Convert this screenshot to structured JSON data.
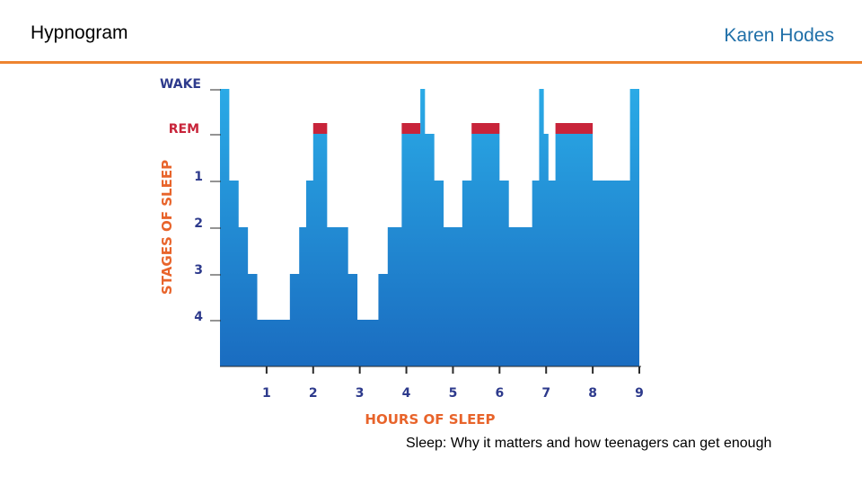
{
  "slide": {
    "title": "Hypnogram",
    "author": "Karen Hodes",
    "caption": "Sleep: Why it matters and how teenagers can get enough"
  },
  "colors": {
    "accent_line": "#ee8430",
    "axis_label": "#e8642b",
    "stage_label_wake_rem": "#2d3a8c",
    "rem_bar": "#c8243a",
    "fill_top": "#2aaae6",
    "fill_bottom": "#1a6cc0",
    "author": "#1f6fa8"
  },
  "chart_data": {
    "type": "area",
    "title": "",
    "xlabel": "HOURS OF SLEEP",
    "ylabel": "STAGES OF SLEEP",
    "x_ticks": [
      "1",
      "2",
      "3",
      "4",
      "5",
      "6",
      "7",
      "8",
      "9"
    ],
    "xlim": [
      0,
      9
    ],
    "y_levels": [
      "WAKE",
      "REM",
      "1",
      "2",
      "3",
      "4"
    ],
    "series": [
      {
        "name": "",
        "points": [
          {
            "x": 0.0,
            "stage": "WAKE"
          },
          {
            "x": 0.2,
            "stage": "1"
          },
          {
            "x": 0.4,
            "stage": "2"
          },
          {
            "x": 0.6,
            "stage": "3"
          },
          {
            "x": 0.8,
            "stage": "4"
          },
          {
            "x": 1.5,
            "stage": "3"
          },
          {
            "x": 1.7,
            "stage": "2"
          },
          {
            "x": 1.85,
            "stage": "1"
          },
          {
            "x": 2.0,
            "stage": "REM"
          },
          {
            "x": 2.3,
            "stage": "2"
          },
          {
            "x": 2.75,
            "stage": "3"
          },
          {
            "x": 2.95,
            "stage": "4"
          },
          {
            "x": 3.4,
            "stage": "3"
          },
          {
            "x": 3.6,
            "stage": "2"
          },
          {
            "x": 3.9,
            "stage": "REM"
          },
          {
            "x": 4.3,
            "stage": "WAKE"
          },
          {
            "x": 4.4,
            "stage": "REM"
          },
          {
            "x": 4.6,
            "stage": "1"
          },
          {
            "x": 4.8,
            "stage": "2"
          },
          {
            "x": 5.2,
            "stage": "1"
          },
          {
            "x": 5.4,
            "stage": "REM"
          },
          {
            "x": 6.0,
            "stage": "1"
          },
          {
            "x": 6.2,
            "stage": "2"
          },
          {
            "x": 6.7,
            "stage": "1"
          },
          {
            "x": 6.85,
            "stage": "WAKE"
          },
          {
            "x": 6.95,
            "stage": "REM"
          },
          {
            "x": 7.05,
            "stage": "1"
          },
          {
            "x": 7.2,
            "stage": "REM"
          },
          {
            "x": 8.0,
            "stage": "1"
          },
          {
            "x": 8.8,
            "stage": "WAKE"
          },
          {
            "x": 9.0,
            "stage": "end"
          }
        ]
      }
    ],
    "rem_periods": [
      [
        2.0,
        2.3
      ],
      [
        3.9,
        4.3
      ],
      [
        5.4,
        6.0
      ],
      [
        7.2,
        8.0
      ]
    ],
    "grid": false,
    "legend": "none"
  }
}
